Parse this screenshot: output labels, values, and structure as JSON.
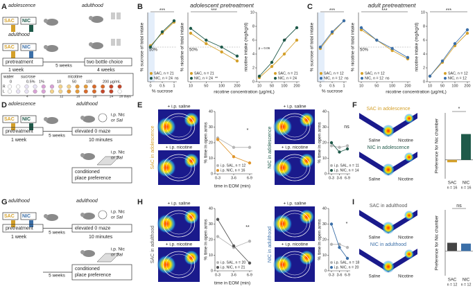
{
  "panel_labels": [
    "A",
    "B",
    "C",
    "D",
    "E",
    "F",
    "G",
    "H",
    "I"
  ],
  "a": {
    "adolescence": "adolescence",
    "adulthood_top": "adulthood",
    "sac_1": "SAC",
    "nic_1": "NIC",
    "adulthood": "adulthood",
    "sac_2": "SAC",
    "nic_2": "NIC",
    "pretreatment": "pretreatment",
    "week": "1 week",
    "gap": "5 weeks",
    "choice": "two bottle choice",
    "choice_weeks": "4 weeks",
    "water": "water",
    "sucrose": "sucrose",
    "nicotine": "nicotine",
    "concentrations": [
      "0",
      "0.5%",
      "1%",
      "10",
      "50",
      "100",
      "200 µg/mL"
    ],
    "sides": [
      "R",
      "L"
    ],
    "days": [
      "4",
      "8",
      "12",
      "16",
      "20",
      "24",
      "28 days"
    ]
  },
  "b": {
    "title": "adolescent pretreatment",
    "x_label": "nicotine concentration (µg/mL)",
    "charts": [
      {
        "type": "line",
        "y_label": "% sucrose of total intake",
        "x_label": "% sucrose",
        "categories": [
          "0",
          "0.5",
          "1"
        ],
        "ylim": [
          0,
          100
        ],
        "reference": {
          "value": 50,
          "label": "50%"
        },
        "significance": "***",
        "series": [
          {
            "name": "SAC, n = 21",
            "color": "#d4a02a",
            "values": [
              52,
              70,
              86
            ]
          },
          {
            "name": "NIC, n = 24",
            "color": "#1f5a4a",
            "values": [
              50,
              72,
              88
            ]
          }
        ],
        "legend_note": "ns"
      },
      {
        "type": "line",
        "y_label": "% nicotine of total intake",
        "categories": [
          "10",
          "50",
          "100",
          "200"
        ],
        "ylim": [
          0,
          100
        ],
        "reference": {
          "value": 50,
          "label": "50%"
        },
        "significance": "***",
        "series": [
          {
            "name": "SAC, n = 21",
            "color": "#d4a02a",
            "values": [
              70,
              55,
              43,
              30
            ]
          },
          {
            "name": "NIC, n = 24",
            "color": "#1f5a4a",
            "values": [
              77,
              60,
              50,
              37
            ]
          }
        ],
        "legend_note": "**"
      },
      {
        "type": "line",
        "y_label": "nicotine intake (mg/kg/d)",
        "categories": [
          "10",
          "50",
          "100",
          "200"
        ],
        "ylim": [
          0,
          10
        ],
        "yticks": [
          0,
          2,
          4,
          6,
          8,
          10
        ],
        "annotations": [
          "p = 0.06",
          "*"
        ],
        "series": [
          {
            "name": "SAC, n = 21",
            "color": "#d4a02a",
            "values": [
              0.6,
              2.2,
              4.0,
              6.0
            ]
          },
          {
            "name": "NIC, n = 24",
            "color": "#1f5a4a",
            "values": [
              0.8,
              2.8,
              6.0,
              7.8
            ]
          }
        ]
      }
    ]
  },
  "c": {
    "title": "adult pretreatment",
    "x_label": "nicotine concentration (µg/mL)",
    "charts": [
      {
        "type": "line",
        "y_label": "% sucrose of total intake",
        "x_label": "% sucrose",
        "categories": [
          "0",
          "0.5",
          "1"
        ],
        "ylim": [
          0,
          100
        ],
        "significance": "***",
        "series": [
          {
            "name": "SAC, n = 12",
            "color": "#d4a02a",
            "values": [
              48,
              70,
              88
            ]
          },
          {
            "name": "NIC, n = 12",
            "color": "#3b6fa8",
            "values": [
              50,
              72,
              88
            ]
          }
        ],
        "legend_note": "ns"
      },
      {
        "type": "line",
        "y_label": "% nicotine of total intake",
        "categories": [
          "10",
          "50",
          "100",
          "200"
        ],
        "ylim": [
          0,
          100
        ],
        "reference": {
          "value": 50,
          "label": "50%"
        },
        "significance": "***",
        "series": [
          {
            "name": "SAC, n = 12",
            "color": "#d4a02a",
            "values": [
              75,
              60,
              45,
              33
            ]
          },
          {
            "name": "NIC, n = 12",
            "color": "#3b6fa8",
            "values": [
              78,
              60,
              48,
              35
            ]
          }
        ],
        "legend_note": "ns"
      },
      {
        "type": "line",
        "y_label": "nicotine intake (mg/kg/d)",
        "categories": [
          "10",
          "50",
          "100",
          "200"
        ],
        "ylim": [
          0,
          10
        ],
        "yticks": [
          0,
          2,
          4,
          6,
          8,
          10
        ],
        "significance": "***",
        "series": [
          {
            "name": "SAC, n = 12",
            "color": "#d4a02a",
            "values": [
              0.8,
              2.8,
              5.2,
              7.0
            ]
          },
          {
            "name": "NIC, n = 12",
            "color": "#3b6fa8",
            "values": [
              0.8,
              3.0,
              5.5,
              7.5
            ]
          }
        ]
      }
    ]
  },
  "d": {
    "adolescence": "adolescence",
    "adulthood": "adulthood",
    "sac": "SAC",
    "nic": "NIC",
    "pretreatment": "pretreatment",
    "week": "1 week",
    "gap": "5 weeks",
    "injection_1": "i.p. Nic",
    "or_1": "or Sal",
    "maze": "elevated 0 maze",
    "minutes": "10 minutes",
    "injection_2": "i.p. Nic",
    "or_2": "or Sal",
    "cpp_1": "conditioned",
    "cpp_2": "place preference"
  },
  "e": {
    "saline": "+ i.p. saline",
    "nicotine": "+ i.p. nicotine",
    "group_1": "SAC in adolescence",
    "group_2": "NIC in adolescence",
    "saline_2": "+ i.p. saline",
    "nicotine_2": "+ i.p. nicotine",
    "x_label": "time in EOM (min)",
    "charts": [
      {
        "type": "line",
        "y_label": "% time in open arms",
        "categories": [
          "0-3",
          "3-6",
          "6-9"
        ],
        "ylim": [
          0,
          40
        ],
        "yticks": [
          0,
          10,
          20,
          30,
          40
        ],
        "significance": "*",
        "series": [
          {
            "name": "i.p. SAL, n = 12",
            "color": "#b5b5b5",
            "values": [
              23,
              17,
              17
            ]
          },
          {
            "name": "i.p. NIC, n = 16",
            "color": "#e0952a",
            "values": [
              22,
              11,
              7
            ]
          }
        ]
      },
      {
        "type": "line",
        "y_label": "% time in open arms",
        "categories": [
          "0-3",
          "3-6",
          "6-9"
        ],
        "ylim": [
          0,
          40
        ],
        "yticks": [
          0,
          10,
          20,
          30,
          40
        ],
        "significance": "ns",
        "series": [
          {
            "name": "i.p. SAL, n = 11",
            "color": "#b5b5b5",
            "values": [
              18,
              17,
              18
            ]
          },
          {
            "name": "i.p. NIC, n = 14",
            "color": "#1f5a4a",
            "values": [
              20,
              14,
              16
            ]
          }
        ]
      }
    ]
  },
  "f": {
    "group_1": "SAC in adolescence",
    "saline_1": "Saline",
    "nicotine_1": "Nicotine",
    "group_2": "NIC in adolescence",
    "saline_2": "Saline",
    "nicotine_2": "Nicotine",
    "chart": {
      "type": "bar",
      "y_label": "Preference for Nic chamber",
      "categories": [
        "SAC",
        "NIC"
      ],
      "counts": [
        "n = 16",
        "n = 16"
      ],
      "colors": [
        "#d4a02a",
        "#1f5a4a"
      ],
      "values": [
        -5,
        55
      ],
      "ylim": [
        -40,
        100
      ],
      "significance": "*"
    }
  },
  "g": {
    "adulthood": "adulthood",
    "adulthood_2": "adulthood",
    "sac": "SAC",
    "nic": "NIC",
    "pretreatment": "pretreatment",
    "week": "1 week",
    "gap": "5 weeks",
    "injection_1": "i.p. Nic",
    "or_1": "or Sal",
    "maze": "elevated 0 maze",
    "minutes": "10 minutes",
    "gap_2": "5 weeks",
    "injection_2": "i.p. Nic",
    "or_2": "or Sal",
    "cpp_1": "conditioned",
    "cpp_2": "place preference"
  },
  "h": {
    "saline": "+ i.p. saline",
    "nicotine": "+ i.p. nicotine",
    "group_1": "SAC in adulthood",
    "group_2": "NIC in adulthood",
    "saline_2": "+ i.p. saline",
    "nicotine_2": "+ i.p. nicotine",
    "x_label": "time in EOM (min)",
    "charts": [
      {
        "type": "line",
        "y_label": "% time in open arms",
        "categories": [
          "0-3",
          "3-6",
          "6-9"
        ],
        "ylim": [
          0,
          40
        ],
        "yticks": [
          0,
          10,
          20,
          30,
          40
        ],
        "significance": "**",
        "series": [
          {
            "name": "i.p. SAL, n = 20",
            "color": "#b5b5b5",
            "values": [
              22,
              15,
              19
            ]
          },
          {
            "name": "i.p. NIC, n = 21",
            "color": "#555555",
            "values": [
              33,
              16,
              5
            ]
          }
        ]
      },
      {
        "type": "line",
        "y_label": "% time in open arms",
        "categories": [
          "0-3",
          "3-6",
          "6-9"
        ],
        "ylim": [
          0,
          40
        ],
        "yticks": [
          0,
          10,
          20,
          30,
          40
        ],
        "significance": "*",
        "series": [
          {
            "name": "i.p. SAL, n = 18",
            "color": "#b5b5b5",
            "values": [
              17,
              17,
              15
            ]
          },
          {
            "name": "i.p. NIC, n = 20",
            "color": "#3b6fa8",
            "values": [
              30,
              15,
              8
            ]
          }
        ]
      }
    ]
  },
  "i": {
    "group_1": "SAC in adulthood",
    "saline_1": "Saline",
    "nicotine_1": "Nicotine",
    "group_2": "NIC in adulthood",
    "saline_2": "Saline",
    "nicotine_2": "Nicotine",
    "chart": {
      "type": "bar",
      "y_label": "Preference for Nic chamber",
      "categories": [
        "SAC",
        "NIC"
      ],
      "counts": [
        "n = 12",
        "n = 12"
      ],
      "colors": [
        "#444444",
        "#3b6fa8"
      ],
      "values": [
        20,
        18
      ],
      "ylim": [
        -60,
        100
      ],
      "significance": "ns"
    }
  }
}
